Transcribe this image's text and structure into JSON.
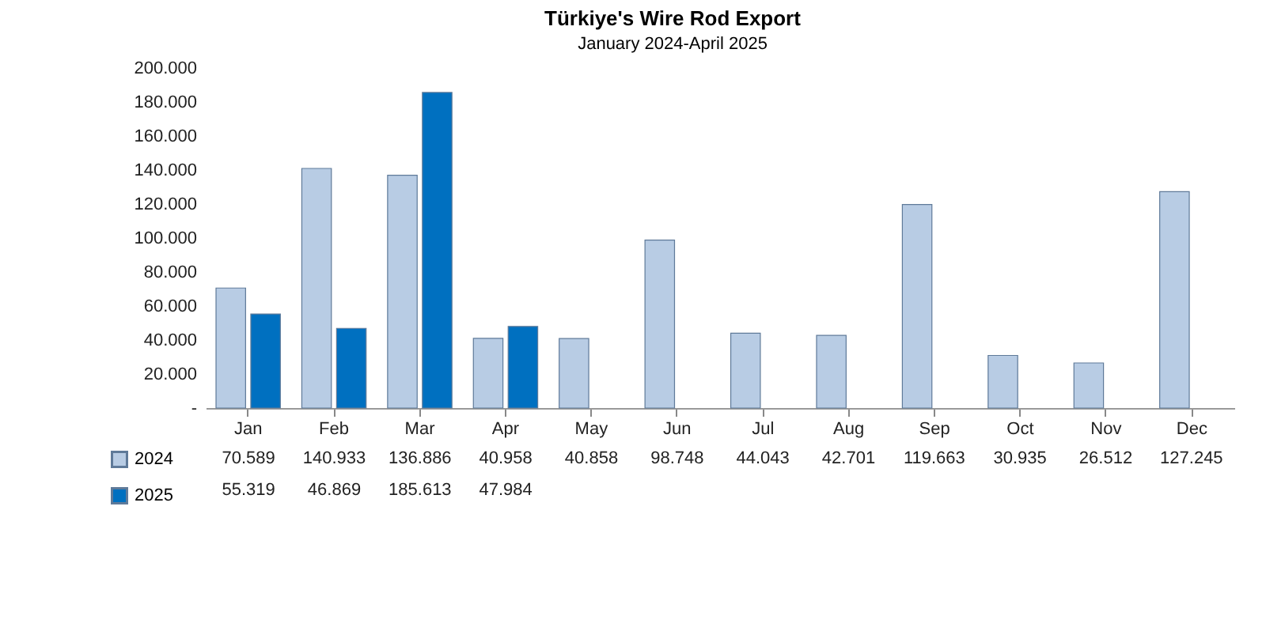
{
  "chart_data": {
    "type": "bar",
    "title": "Türkiye's Wire Rod Export",
    "subtitle": "January 2024-April 2025",
    "categories": [
      "Jan",
      "Feb",
      "Mar",
      "Apr",
      "May",
      "Jun",
      "Jul",
      "Aug",
      "Sep",
      "Oct",
      "Nov",
      "Dec"
    ],
    "series": [
      {
        "name": "2024",
        "color": "#b8cce4",
        "values": [
          70589,
          140933,
          136886,
          40958,
          40858,
          98748,
          44043,
          42701,
          119663,
          30935,
          26512,
          127245
        ],
        "value_labels": [
          "70.589",
          "140.933",
          "136.886",
          "40.958",
          "40.858",
          "98.748",
          "44.043",
          "42.701",
          "119.663",
          "30.935",
          "26.512",
          "127.245"
        ]
      },
      {
        "name": "2025",
        "color": "#0070c0",
        "values": [
          55319,
          46869,
          185613,
          47984,
          null,
          null,
          null,
          null,
          null,
          null,
          null,
          null
        ],
        "value_labels": [
          "55.319",
          "46.869",
          "185.613",
          "47.984",
          null,
          null,
          null,
          null,
          null,
          null,
          null,
          null
        ]
      }
    ],
    "ylim": [
      0,
      200000
    ],
    "yticks": [
      {
        "value": 0,
        "label": "-"
      },
      {
        "value": 20000,
        "label": "20.000"
      },
      {
        "value": 40000,
        "label": "40.000"
      },
      {
        "value": 60000,
        "label": "60.000"
      },
      {
        "value": 80000,
        "label": "80.000"
      },
      {
        "value": 100000,
        "label": "100.000"
      },
      {
        "value": 120000,
        "label": "120.000"
      },
      {
        "value": 140000,
        "label": "140.000"
      },
      {
        "value": 160000,
        "label": "160.000"
      },
      {
        "value": 180000,
        "label": "180.000"
      },
      {
        "value": 200000,
        "label": "200.000"
      }
    ],
    "grid": false,
    "legend": "bottom left"
  }
}
